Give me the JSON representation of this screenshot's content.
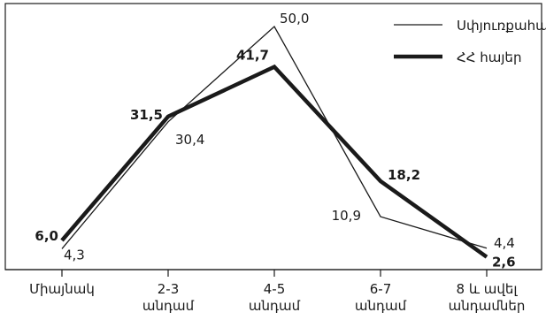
{
  "chart_data": {
    "type": "line",
    "categories": [
      [
        "Միայնակ"
      ],
      [
        "2-3",
        "անդամ"
      ],
      [
        "4-5",
        "անդամ"
      ],
      [
        "6-7",
        "անդամ"
      ],
      [
        "8 և ավել",
        "անդամներ"
      ]
    ],
    "series": [
      {
        "name": "Սփյուռքահայեր",
        "values": [
          4.3,
          30.4,
          50.0,
          10.9,
          4.4
        ],
        "labels": [
          "4,3",
          "30,4",
          "50,0",
          "10,9",
          "4,4"
        ],
        "line_weight": "thin",
        "color": "#1a1a1a"
      },
      {
        "name": "ՀՀ հայեր",
        "values": [
          6.0,
          31.5,
          41.7,
          18.2,
          2.6
        ],
        "labels": [
          "6,0",
          "31,5",
          "41,7",
          "18,2",
          "2,6"
        ],
        "line_weight": "thick",
        "color": "#1a1a1a"
      }
    ],
    "ylim": [
      0,
      54
    ],
    "xlabel": "",
    "ylabel": "",
    "title": "",
    "grid": false,
    "legend_position": "top-right"
  }
}
